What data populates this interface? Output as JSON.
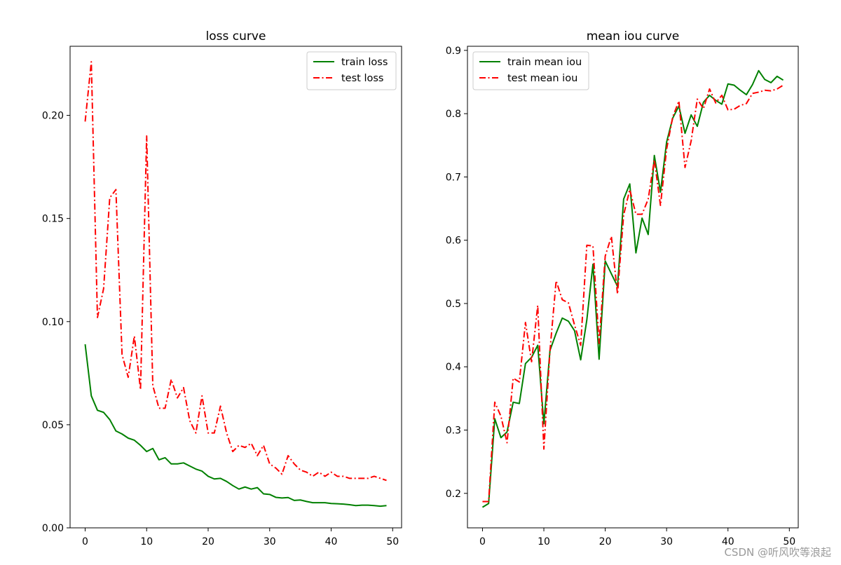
{
  "chart_data": [
    {
      "type": "line",
      "title": "loss curve",
      "xlabel": "",
      "ylabel": "",
      "xlim": [
        -2.45,
        51.45
      ],
      "ylim": [
        0,
        0.2335
      ],
      "xticks": [
        0,
        10,
        20,
        30,
        40,
        50
      ],
      "yticks": [
        0.0,
        0.05,
        0.1,
        0.15,
        0.2
      ],
      "ytick_labels": [
        "0.00",
        "0.05",
        "0.10",
        "0.15",
        "0.20"
      ],
      "legend_position": "top-right",
      "x": [
        0,
        1,
        2,
        3,
        4,
        5,
        6,
        7,
        8,
        9,
        10,
        11,
        12,
        13,
        14,
        15,
        16,
        17,
        18,
        19,
        20,
        21,
        22,
        23,
        24,
        25,
        26,
        27,
        28,
        29,
        30,
        31,
        32,
        33,
        34,
        35,
        36,
        37,
        38,
        39,
        40,
        41,
        42,
        43,
        44,
        45,
        46,
        47,
        48,
        49
      ],
      "series": [
        {
          "name": "train loss",
          "color": "#008000",
          "style": "solid",
          "values": [
            0.089,
            0.064,
            0.057,
            0.056,
            0.0525,
            0.047,
            0.0455,
            0.0435,
            0.0425,
            0.04,
            0.037,
            0.0385,
            0.033,
            0.034,
            0.031,
            0.031,
            0.0315,
            0.03,
            0.0285,
            0.0275,
            0.025,
            0.0237,
            0.024,
            0.0225,
            0.0205,
            0.0188,
            0.0198,
            0.0188,
            0.0195,
            0.0165,
            0.0162,
            0.0148,
            0.0145,
            0.0147,
            0.0133,
            0.0135,
            0.0128,
            0.0122,
            0.0122,
            0.0122,
            0.0118,
            0.0117,
            0.0115,
            0.0112,
            0.0108,
            0.011,
            0.011,
            0.0108,
            0.0105,
            0.0108
          ]
        },
        {
          "name": "test loss",
          "color": "#ff0000",
          "style": "dashdot",
          "values": [
            0.197,
            0.226,
            0.102,
            0.116,
            0.16,
            0.164,
            0.084,
            0.073,
            0.093,
            0.067,
            0.19,
            0.069,
            0.058,
            0.058,
            0.072,
            0.063,
            0.068,
            0.052,
            0.046,
            0.064,
            0.046,
            0.046,
            0.059,
            0.046,
            0.037,
            0.04,
            0.039,
            0.041,
            0.035,
            0.04,
            0.031,
            0.029,
            0.026,
            0.035,
            0.031,
            0.028,
            0.027,
            0.025,
            0.027,
            0.025,
            0.027,
            0.025,
            0.025,
            0.024,
            0.024,
            0.024,
            0.024,
            0.025,
            0.024,
            0.023
          ]
        }
      ]
    },
    {
      "type": "line",
      "title": "mean iou curve",
      "xlabel": "",
      "ylabel": "",
      "xlim": [
        -2.45,
        51.45
      ],
      "ylim": [
        0.1455,
        0.9065
      ],
      "xticks": [
        0,
        10,
        20,
        30,
        40,
        50
      ],
      "yticks": [
        0.2,
        0.3,
        0.4,
        0.5,
        0.6,
        0.7,
        0.8,
        0.9
      ],
      "ytick_labels": [
        "0.2",
        "0.3",
        "0.4",
        "0.5",
        "0.6",
        "0.7",
        "0.8",
        "0.9"
      ],
      "legend_position": "top-left",
      "x": [
        0,
        1,
        2,
        3,
        4,
        5,
        6,
        7,
        8,
        9,
        10,
        11,
        12,
        13,
        14,
        15,
        16,
        17,
        18,
        19,
        20,
        21,
        22,
        23,
        24,
        25,
        26,
        27,
        28,
        29,
        30,
        31,
        32,
        33,
        34,
        35,
        36,
        37,
        38,
        39,
        40,
        41,
        42,
        43,
        44,
        45,
        46,
        47,
        48,
        49
      ],
      "series": [
        {
          "name": "train mean iou",
          "color": "#008000",
          "style": "solid",
          "values": [
            0.178,
            0.184,
            0.318,
            0.288,
            0.297,
            0.344,
            0.342,
            0.405,
            0.415,
            0.434,
            0.31,
            0.426,
            0.453,
            0.477,
            0.472,
            0.457,
            0.411,
            0.474,
            0.562,
            0.412,
            0.567,
            0.547,
            0.527,
            0.665,
            0.689,
            0.58,
            0.635,
            0.609,
            0.734,
            0.676,
            0.755,
            0.793,
            0.812,
            0.769,
            0.798,
            0.78,
            0.818,
            0.829,
            0.821,
            0.815,
            0.847,
            0.845,
            0.837,
            0.83,
            0.846,
            0.868,
            0.854,
            0.849,
            0.859,
            0.853
          ]
        },
        {
          "name": "test mean iou",
          "color": "#ff0000",
          "style": "dashdot",
          "values": [
            0.187,
            0.187,
            0.344,
            0.322,
            0.28,
            0.382,
            0.376,
            0.47,
            0.408,
            0.497,
            0.27,
            0.426,
            0.536,
            0.506,
            0.501,
            0.466,
            0.434,
            0.592,
            0.591,
            0.437,
            0.575,
            0.606,
            0.515,
            0.64,
            0.68,
            0.641,
            0.641,
            0.665,
            0.727,
            0.655,
            0.744,
            0.795,
            0.82,
            0.715,
            0.757,
            0.823,
            0.808,
            0.839,
            0.817,
            0.829,
            0.806,
            0.807,
            0.813,
            0.816,
            0.832,
            0.834,
            0.837,
            0.836,
            0.839,
            0.845
          ]
        }
      ]
    }
  ],
  "watermark": "CSDN @听风吹等浪起"
}
